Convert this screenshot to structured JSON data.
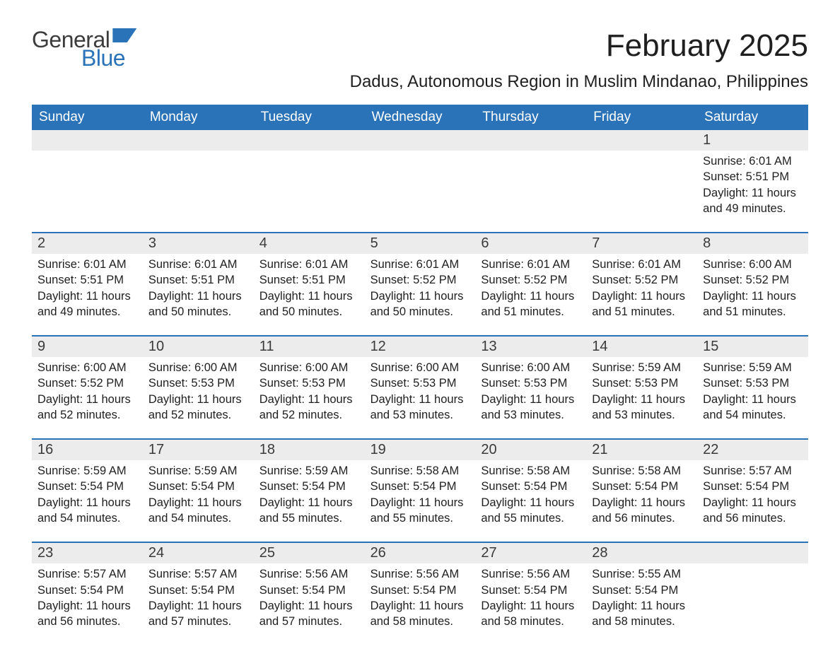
{
  "logo": {
    "part1": "General",
    "part2": "Blue"
  },
  "title": "February 2025",
  "location": "Dadus, Autonomous Region in Muslim Mindanao, Philippines",
  "colors": {
    "header_bg": "#2b73b8",
    "header_text": "#ffffff",
    "daynum_bg": "#ececec",
    "text": "#1f1f1f",
    "rule": "#2b73b8",
    "page_bg": "#ffffff"
  },
  "weekdays": [
    "Sunday",
    "Monday",
    "Tuesday",
    "Wednesday",
    "Thursday",
    "Friday",
    "Saturday"
  ],
  "weeks": [
    [
      {
        "day": "",
        "sunrise": "",
        "sunset": "",
        "daylight": ""
      },
      {
        "day": "",
        "sunrise": "",
        "sunset": "",
        "daylight": ""
      },
      {
        "day": "",
        "sunrise": "",
        "sunset": "",
        "daylight": ""
      },
      {
        "day": "",
        "sunrise": "",
        "sunset": "",
        "daylight": ""
      },
      {
        "day": "",
        "sunrise": "",
        "sunset": "",
        "daylight": ""
      },
      {
        "day": "",
        "sunrise": "",
        "sunset": "",
        "daylight": ""
      },
      {
        "day": "1",
        "sunrise": "Sunrise: 6:01 AM",
        "sunset": "Sunset: 5:51 PM",
        "daylight": "Daylight: 11 hours and 49 minutes."
      }
    ],
    [
      {
        "day": "2",
        "sunrise": "Sunrise: 6:01 AM",
        "sunset": "Sunset: 5:51 PM",
        "daylight": "Daylight: 11 hours and 49 minutes."
      },
      {
        "day": "3",
        "sunrise": "Sunrise: 6:01 AM",
        "sunset": "Sunset: 5:51 PM",
        "daylight": "Daylight: 11 hours and 50 minutes."
      },
      {
        "day": "4",
        "sunrise": "Sunrise: 6:01 AM",
        "sunset": "Sunset: 5:51 PM",
        "daylight": "Daylight: 11 hours and 50 minutes."
      },
      {
        "day": "5",
        "sunrise": "Sunrise: 6:01 AM",
        "sunset": "Sunset: 5:52 PM",
        "daylight": "Daylight: 11 hours and 50 minutes."
      },
      {
        "day": "6",
        "sunrise": "Sunrise: 6:01 AM",
        "sunset": "Sunset: 5:52 PM",
        "daylight": "Daylight: 11 hours and 51 minutes."
      },
      {
        "day": "7",
        "sunrise": "Sunrise: 6:01 AM",
        "sunset": "Sunset: 5:52 PM",
        "daylight": "Daylight: 11 hours and 51 minutes."
      },
      {
        "day": "8",
        "sunrise": "Sunrise: 6:00 AM",
        "sunset": "Sunset: 5:52 PM",
        "daylight": "Daylight: 11 hours and 51 minutes."
      }
    ],
    [
      {
        "day": "9",
        "sunrise": "Sunrise: 6:00 AM",
        "sunset": "Sunset: 5:52 PM",
        "daylight": "Daylight: 11 hours and 52 minutes."
      },
      {
        "day": "10",
        "sunrise": "Sunrise: 6:00 AM",
        "sunset": "Sunset: 5:53 PM",
        "daylight": "Daylight: 11 hours and 52 minutes."
      },
      {
        "day": "11",
        "sunrise": "Sunrise: 6:00 AM",
        "sunset": "Sunset: 5:53 PM",
        "daylight": "Daylight: 11 hours and 52 minutes."
      },
      {
        "day": "12",
        "sunrise": "Sunrise: 6:00 AM",
        "sunset": "Sunset: 5:53 PM",
        "daylight": "Daylight: 11 hours and 53 minutes."
      },
      {
        "day": "13",
        "sunrise": "Sunrise: 6:00 AM",
        "sunset": "Sunset: 5:53 PM",
        "daylight": "Daylight: 11 hours and 53 minutes."
      },
      {
        "day": "14",
        "sunrise": "Sunrise: 5:59 AM",
        "sunset": "Sunset: 5:53 PM",
        "daylight": "Daylight: 11 hours and 53 minutes."
      },
      {
        "day": "15",
        "sunrise": "Sunrise: 5:59 AM",
        "sunset": "Sunset: 5:53 PM",
        "daylight": "Daylight: 11 hours and 54 minutes."
      }
    ],
    [
      {
        "day": "16",
        "sunrise": "Sunrise: 5:59 AM",
        "sunset": "Sunset: 5:54 PM",
        "daylight": "Daylight: 11 hours and 54 minutes."
      },
      {
        "day": "17",
        "sunrise": "Sunrise: 5:59 AM",
        "sunset": "Sunset: 5:54 PM",
        "daylight": "Daylight: 11 hours and 54 minutes."
      },
      {
        "day": "18",
        "sunrise": "Sunrise: 5:59 AM",
        "sunset": "Sunset: 5:54 PM",
        "daylight": "Daylight: 11 hours and 55 minutes."
      },
      {
        "day": "19",
        "sunrise": "Sunrise: 5:58 AM",
        "sunset": "Sunset: 5:54 PM",
        "daylight": "Daylight: 11 hours and 55 minutes."
      },
      {
        "day": "20",
        "sunrise": "Sunrise: 5:58 AM",
        "sunset": "Sunset: 5:54 PM",
        "daylight": "Daylight: 11 hours and 55 minutes."
      },
      {
        "day": "21",
        "sunrise": "Sunrise: 5:58 AM",
        "sunset": "Sunset: 5:54 PM",
        "daylight": "Daylight: 11 hours and 56 minutes."
      },
      {
        "day": "22",
        "sunrise": "Sunrise: 5:57 AM",
        "sunset": "Sunset: 5:54 PM",
        "daylight": "Daylight: 11 hours and 56 minutes."
      }
    ],
    [
      {
        "day": "23",
        "sunrise": "Sunrise: 5:57 AM",
        "sunset": "Sunset: 5:54 PM",
        "daylight": "Daylight: 11 hours and 56 minutes."
      },
      {
        "day": "24",
        "sunrise": "Sunrise: 5:57 AM",
        "sunset": "Sunset: 5:54 PM",
        "daylight": "Daylight: 11 hours and 57 minutes."
      },
      {
        "day": "25",
        "sunrise": "Sunrise: 5:56 AM",
        "sunset": "Sunset: 5:54 PM",
        "daylight": "Daylight: 11 hours and 57 minutes."
      },
      {
        "day": "26",
        "sunrise": "Sunrise: 5:56 AM",
        "sunset": "Sunset: 5:54 PM",
        "daylight": "Daylight: 11 hours and 58 minutes."
      },
      {
        "day": "27",
        "sunrise": "Sunrise: 5:56 AM",
        "sunset": "Sunset: 5:54 PM",
        "daylight": "Daylight: 11 hours and 58 minutes."
      },
      {
        "day": "28",
        "sunrise": "Sunrise: 5:55 AM",
        "sunset": "Sunset: 5:54 PM",
        "daylight": "Daylight: 11 hours and 58 minutes."
      },
      {
        "day": "",
        "sunrise": "",
        "sunset": "",
        "daylight": ""
      }
    ]
  ]
}
